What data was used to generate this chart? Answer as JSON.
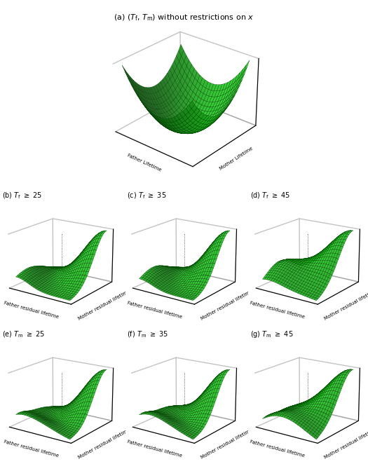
{
  "xlabel_main": "Father Lifetime",
  "ylabel_main": "Mother Lifetime",
  "xlabel_sub": "Father residual lifetime",
  "ylabel_sub": "Mother residual lifetime",
  "surface_color": "#22cc22",
  "edge_color": "#004400",
  "n_grid": 25
}
